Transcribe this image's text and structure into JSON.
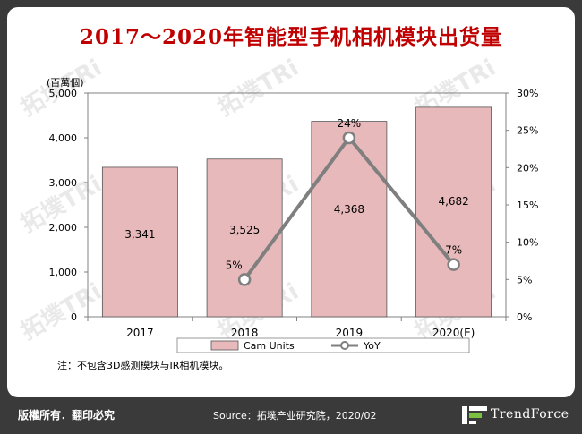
{
  "title": "2017～2020年智能型手机相机模块出货量",
  "note": "注：不包含3D感测模块与IR相机模块。",
  "footer": {
    "rights": "版權所有．翻印必究",
    "source": "Source：拓墣产业研究院，2020/02",
    "brand": "TrendForce"
  },
  "watermark_text": "拓墣TRi",
  "colors": {
    "bar_fill": "#e8b9ba",
    "bar_stroke": "#555555",
    "line": "#7f7f7f",
    "marker_fill": "#ffffff",
    "title": "#c00000"
  },
  "chart_data": {
    "type": "bar",
    "categories": [
      "2017",
      "2018",
      "2019",
      "2020(E)"
    ],
    "unit_label": "(百萬個)",
    "series": [
      {
        "name": "Cam Units",
        "type": "bar",
        "axis": "left",
        "values": [
          3341,
          3525,
          4368,
          4682
        ],
        "labels": [
          "3,341",
          "3,525",
          "4,368",
          "4,682"
        ]
      },
      {
        "name": "YoY",
        "type": "line",
        "axis": "right",
        "x": [
          "2018",
          "2019",
          "2020(E)"
        ],
        "values": [
          5,
          24,
          7
        ],
        "labels": [
          "5%",
          "24%",
          "7%"
        ]
      }
    ],
    "left_axis": {
      "ylim": [
        0,
        5000
      ],
      "ticks": [
        "0",
        "1,000",
        "2,000",
        "3,000",
        "4,000",
        "5,000"
      ]
    },
    "right_axis": {
      "ylim": [
        0,
        30
      ],
      "ticks": [
        "0%",
        "5%",
        "10%",
        "15%",
        "20%",
        "25%",
        "30%"
      ]
    },
    "legend_position": "bottom",
    "grid": false
  }
}
